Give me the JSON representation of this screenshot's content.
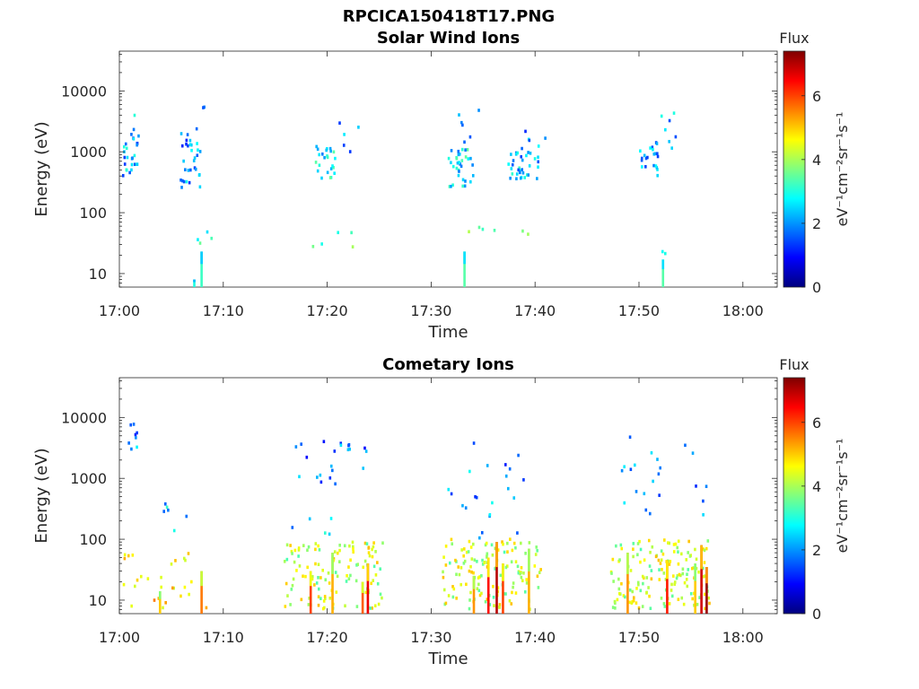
{
  "figure": {
    "title": "RPCICA150418T17.PNG"
  },
  "colorscale": [
    "#00007f",
    "#0000ff",
    "#007fff",
    "#00ffff",
    "#7fff7f",
    "#ffff00",
    "#ff7f00",
    "#ff0000",
    "#7f0000"
  ],
  "chart_data": [
    {
      "type": "heatmap",
      "title": "Solar Wind Ions",
      "xlabel": "Time",
      "ylabel": "Energy (eV)",
      "x_ticks": [
        "17:00",
        "17:10",
        "17:20",
        "17:30",
        "17:40",
        "17:50",
        "18:00"
      ],
      "x_tick_minutes": [
        0,
        10,
        20,
        30,
        40,
        50,
        60
      ],
      "xlim_minutes": [
        0,
        63.3
      ],
      "y_scale": "log",
      "y_ticks": [
        "10",
        "100",
        "1000",
        "10000"
      ],
      "ylim": [
        6,
        45000
      ],
      "colorbar": {
        "title": "Flux",
        "label": "eV⁻¹cm⁻²sr⁻¹s⁻¹",
        "ticks": [
          "0",
          "2",
          "4",
          "6"
        ],
        "range": [
          0,
          7.4
        ]
      },
      "clusters": [
        {
          "t": 0.2,
          "dt": 1.5,
          "e_lo": 400,
          "e_hi": 1500,
          "flux": 2.2,
          "n": 22
        },
        {
          "t": 0.4,
          "dt": 1.5,
          "e_lo": 1500,
          "e_hi": 4500,
          "flux": 2.2,
          "n": 6
        },
        {
          "t": 5.8,
          "dt": 2.0,
          "e_lo": 250,
          "e_hi": 2500,
          "flux": 2.0,
          "n": 32
        },
        {
          "t": 7.8,
          "dt": 0.3,
          "e_lo": 4500,
          "e_hi": 6000,
          "flux": 2.0,
          "n": 2
        },
        {
          "t": 18.8,
          "dt": 2.0,
          "e_lo": 350,
          "e_hi": 1300,
          "flux": 2.7,
          "n": 24
        },
        {
          "t": 20.5,
          "dt": 2.5,
          "e_lo": 900,
          "e_hi": 5000,
          "flux": 2.2,
          "n": 5
        },
        {
          "t": 31.5,
          "dt": 2.5,
          "e_lo": 250,
          "e_hi": 1200,
          "flux": 2.6,
          "n": 34
        },
        {
          "t": 32.5,
          "dt": 2.0,
          "e_lo": 1200,
          "e_hi": 6000,
          "flux": 2.0,
          "n": 6
        },
        {
          "t": 37.3,
          "dt": 3.0,
          "e_lo": 350,
          "e_hi": 1000,
          "flux": 2.3,
          "n": 34
        },
        {
          "t": 38.0,
          "dt": 3.0,
          "e_lo": 1000,
          "e_hi": 3500,
          "flux": 2.0,
          "n": 6
        },
        {
          "t": 50.0,
          "dt": 1.8,
          "e_lo": 400,
          "e_hi": 1500,
          "flux": 2.0,
          "n": 22
        },
        {
          "t": 48.5,
          "dt": 5.0,
          "e_lo": 1000,
          "e_hi": 5000,
          "flux": 2.2,
          "n": 7
        },
        {
          "t": 6.2,
          "dt": 3.5,
          "e_lo": 30,
          "e_hi": 60,
          "flux": 3.0,
          "n": 4
        },
        {
          "t": 18.5,
          "dt": 4.0,
          "e_lo": 12,
          "e_hi": 50,
          "flux": 3.2,
          "n": 5
        },
        {
          "t": 33.5,
          "dt": 6.5,
          "e_lo": 30,
          "e_hi": 90,
          "flux": 3.2,
          "n": 6
        },
        {
          "t": 52.0,
          "dt": 0.8,
          "e_lo": 20,
          "e_hi": 35,
          "flux": 3.2,
          "n": 2
        }
      ],
      "columns": [
        {
          "t": 7.8,
          "e_lo": 6,
          "e_hi": 23,
          "flux": 3.2
        },
        {
          "t": 7.1,
          "e_lo": 6,
          "e_hi": 8,
          "flux": 3.0
        },
        {
          "t": 33.1,
          "e_lo": 6,
          "e_hi": 23,
          "flux": 3.4
        },
        {
          "t": 52.2,
          "e_lo": 6,
          "e_hi": 17,
          "flux": 3.4
        }
      ]
    },
    {
      "type": "heatmap",
      "title": "Cometary Ions",
      "xlabel": "Time",
      "ylabel": "Energy (eV)",
      "x_ticks": [
        "17:00",
        "17:10",
        "17:20",
        "17:30",
        "17:40",
        "17:50",
        "18:00"
      ],
      "x_tick_minutes": [
        0,
        10,
        20,
        30,
        40,
        50,
        60
      ],
      "xlim_minutes": [
        0,
        63.3
      ],
      "y_scale": "log",
      "y_ticks": [
        "10",
        "100",
        "1000",
        "10000"
      ],
      "ylim": [
        6,
        45000
      ],
      "colorbar": {
        "title": "Flux",
        "label": "eV⁻¹cm⁻²sr⁻¹s⁻¹",
        "ticks": [
          "0",
          "2",
          "4",
          "6"
        ],
        "range": [
          0,
          7.4
        ]
      },
      "clusters": [
        {
          "t": 0.7,
          "dt": 1.5,
          "e_lo": 3000,
          "e_hi": 10000,
          "flux": 2.0,
          "n": 8
        },
        {
          "t": 3.5,
          "dt": 5.0,
          "e_lo": 120,
          "e_hi": 400,
          "flux": 2.3,
          "n": 6
        },
        {
          "t": 16.8,
          "dt": 7.5,
          "e_lo": 800,
          "e_hi": 5000,
          "flux": 1.8,
          "n": 22
        },
        {
          "t": 16.5,
          "dt": 4.0,
          "e_lo": 100,
          "e_hi": 250,
          "flux": 2.5,
          "n": 5
        },
        {
          "t": 31.5,
          "dt": 7.5,
          "e_lo": 100,
          "e_hi": 5000,
          "flux": 2.0,
          "n": 22
        },
        {
          "t": 47.5,
          "dt": 9.0,
          "e_lo": 250,
          "e_hi": 5000,
          "flux": 2.0,
          "n": 22
        },
        {
          "t": 0.0,
          "dt": 8.5,
          "e_lo": 7,
          "e_hi": 60,
          "flux": 4.8,
          "n": 28
        },
        {
          "t": 15.8,
          "dt": 9.5,
          "e_lo": 7,
          "e_hi": 90,
          "flux": 4.2,
          "n": 120
        },
        {
          "t": 31.0,
          "dt": 9.5,
          "e_lo": 7,
          "e_hi": 100,
          "flux": 4.2,
          "n": 140
        },
        {
          "t": 47.2,
          "dt": 9.5,
          "e_lo": 7,
          "e_hi": 100,
          "flux": 4.2,
          "n": 150
        }
      ],
      "columns": [
        {
          "t": 7.8,
          "e_lo": 6,
          "e_hi": 30,
          "flux": 5.6
        },
        {
          "t": 3.8,
          "e_lo": 6,
          "e_hi": 14,
          "flux": 5.0
        },
        {
          "t": 18.3,
          "e_lo": 6,
          "e_hi": 30,
          "flux": 6.0
        },
        {
          "t": 20.4,
          "e_lo": 6,
          "e_hi": 60,
          "flux": 5.2
        },
        {
          "t": 23.8,
          "e_lo": 6,
          "e_hi": 40,
          "flux": 6.6
        },
        {
          "t": 23.3,
          "e_lo": 6,
          "e_hi": 20,
          "flux": 5.8
        },
        {
          "t": 35.4,
          "e_lo": 6,
          "e_hi": 50,
          "flux": 6.4
        },
        {
          "t": 36.2,
          "e_lo": 6,
          "e_hi": 90,
          "flux": 7.0
        },
        {
          "t": 36.8,
          "e_lo": 6,
          "e_hi": 40,
          "flux": 6.0
        },
        {
          "t": 34.0,
          "e_lo": 6,
          "e_hi": 25,
          "flux": 5.4
        },
        {
          "t": 39.3,
          "e_lo": 6,
          "e_hi": 70,
          "flux": 5.2
        },
        {
          "t": 48.8,
          "e_lo": 6,
          "e_hi": 60,
          "flux": 5.4
        },
        {
          "t": 52.6,
          "e_lo": 6,
          "e_hi": 45,
          "flux": 6.3
        },
        {
          "t": 55.3,
          "e_lo": 6,
          "e_hi": 40,
          "flux": 5.0
        },
        {
          "t": 55.9,
          "e_lo": 6,
          "e_hi": 80,
          "flux": 6.8
        },
        {
          "t": 56.4,
          "e_lo": 6,
          "e_hi": 35,
          "flux": 7.2
        }
      ]
    }
  ]
}
